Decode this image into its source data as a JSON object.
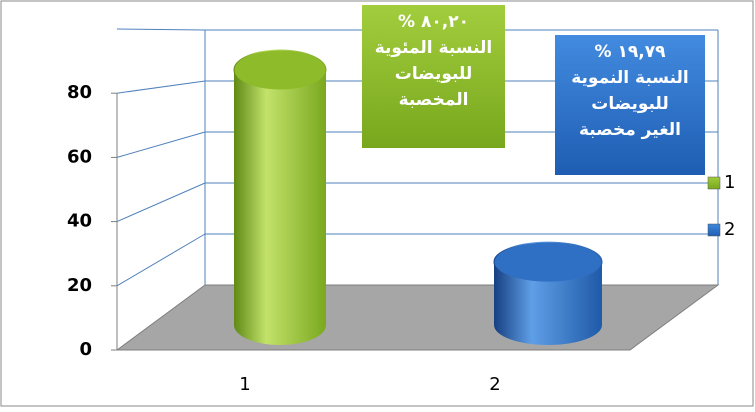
{
  "chart_data": {
    "type": "cylinder",
    "categories": [
      "1",
      "2"
    ],
    "values": [
      80.2,
      19.79
    ],
    "value_labels": [
      "٨٠,٢٠ %",
      "١٩,٧٩ %"
    ],
    "annotations": [
      [
        "النسبة المئوية",
        "للبويضات",
        "المخصبة"
      ],
      [
        "النسبة النموية",
        "للبويضات",
        "الغير مخصبة"
      ]
    ],
    "colors": [
      "#8dbb2a",
      "#2f6fc4"
    ],
    "ylim": [
      0,
      100
    ],
    "yticks": [
      0,
      20,
      40,
      60,
      80
    ],
    "grid": true,
    "legend": "right"
  }
}
